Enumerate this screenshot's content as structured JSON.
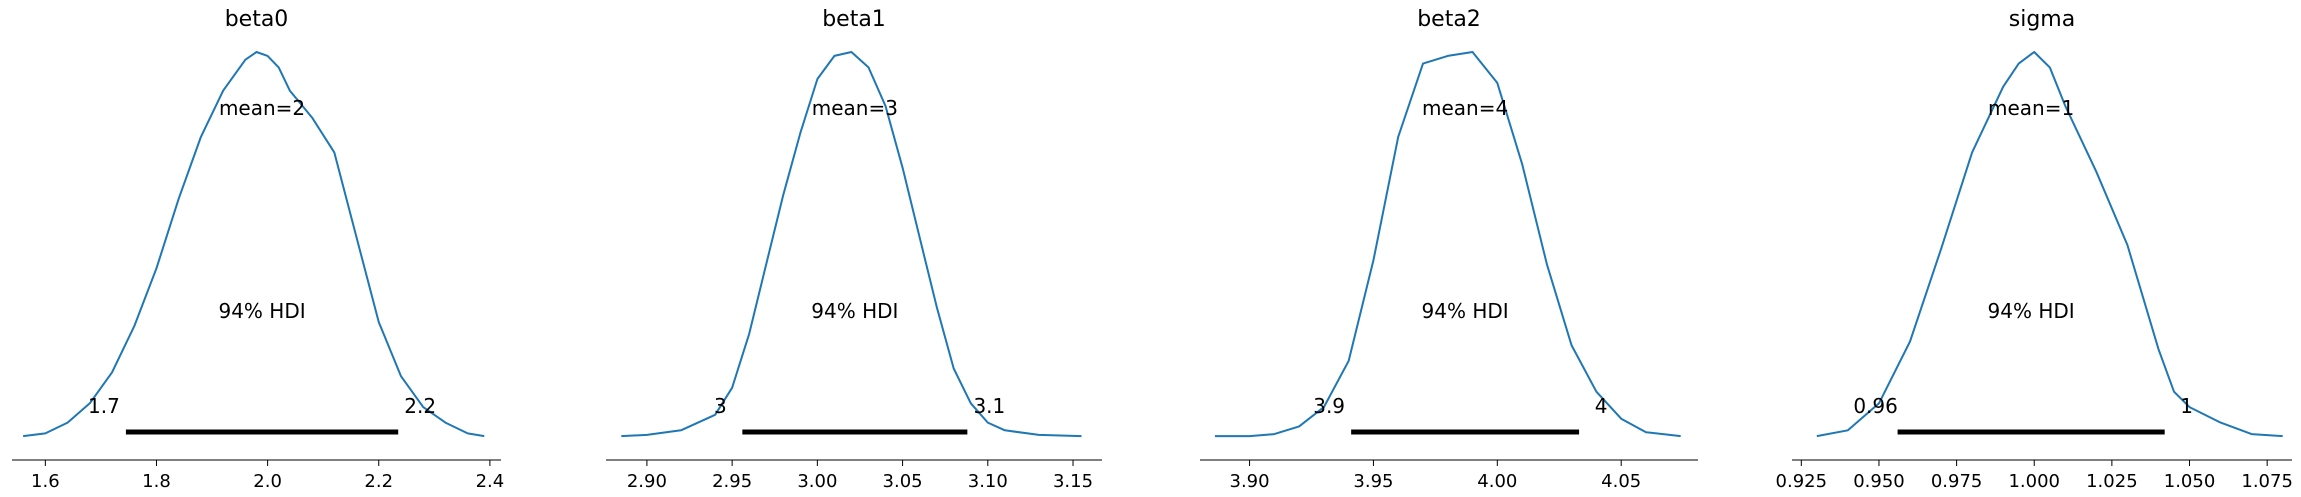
{
  "chart_data": [
    {
      "type": "density",
      "title": "beta0",
      "mean_label": "mean=2",
      "hdi_label": "94% HDI",
      "hdi": [
        1.745,
        2.235
      ],
      "hdi_low_label": "1.7",
      "hdi_high_label": "2.2",
      "xlim": [
        1.54,
        2.42
      ],
      "xticks": [
        1.6,
        1.8,
        2.0,
        2.2,
        2.4
      ],
      "xtick_labels": [
        "1.6",
        "1.8",
        "2.0",
        "2.2",
        "2.4"
      ],
      "curve_x": [
        1.56,
        1.6,
        1.64,
        1.68,
        1.72,
        1.76,
        1.8,
        1.84,
        1.88,
        1.92,
        1.96,
        1.98,
        2.0,
        2.02,
        2.04,
        2.08,
        2.12,
        2.16,
        2.2,
        2.24,
        2.28,
        2.32,
        2.36,
        2.39
      ],
      "curve_y": [
        0.005,
        0.012,
        0.04,
        0.09,
        0.17,
        0.29,
        0.44,
        0.62,
        0.78,
        0.9,
        0.98,
        1.0,
        0.99,
        0.96,
        0.9,
        0.83,
        0.74,
        0.52,
        0.3,
        0.16,
        0.08,
        0.04,
        0.012,
        0.005
      ]
    },
    {
      "type": "density",
      "title": "beta1",
      "mean_label": "mean=3",
      "hdi_label": "94% HDI",
      "hdi": [
        2.956,
        3.088
      ],
      "hdi_low_label": "3",
      "hdi_high_label": "3.1",
      "xlim": [
        2.876,
        3.167
      ],
      "xticks": [
        2.9,
        2.95,
        3.0,
        3.05,
        3.1,
        3.15
      ],
      "xtick_labels": [
        "2.90",
        "2.95",
        "3.00",
        "3.05",
        "3.10",
        "3.15"
      ],
      "curve_x": [
        2.885,
        2.9,
        2.92,
        2.94,
        2.95,
        2.96,
        2.97,
        2.98,
        2.99,
        3.0,
        3.01,
        3.02,
        3.03,
        3.04,
        3.05,
        3.06,
        3.07,
        3.08,
        3.09,
        3.1,
        3.11,
        3.13,
        3.155
      ],
      "curve_y": [
        0.005,
        0.008,
        0.02,
        0.06,
        0.13,
        0.27,
        0.45,
        0.63,
        0.79,
        0.93,
        0.99,
        1.0,
        0.96,
        0.86,
        0.7,
        0.52,
        0.34,
        0.18,
        0.09,
        0.04,
        0.02,
        0.008,
        0.005
      ]
    },
    {
      "type": "density",
      "title": "beta2",
      "mean_label": "mean=4",
      "hdi_label": "94% HDI",
      "hdi": [
        3.941,
        4.033
      ],
      "hdi_low_label": "3.9",
      "hdi_high_label": "4",
      "xlim": [
        3.88,
        4.081
      ],
      "xticks": [
        3.9,
        3.95,
        4.0,
        4.05
      ],
      "xtick_labels": [
        "3.90",
        "3.95",
        "4.00",
        "4.05"
      ],
      "curve_x": [
        3.886,
        3.9,
        3.91,
        3.92,
        3.93,
        3.94,
        3.95,
        3.96,
        3.97,
        3.98,
        3.99,
        4.0,
        4.01,
        4.02,
        4.03,
        4.04,
        4.05,
        4.06,
        4.074
      ],
      "curve_y": [
        0.005,
        0.005,
        0.01,
        0.03,
        0.08,
        0.2,
        0.46,
        0.78,
        0.97,
        0.99,
        1.0,
        0.92,
        0.71,
        0.45,
        0.24,
        0.12,
        0.05,
        0.015,
        0.005
      ]
    },
    {
      "type": "density",
      "title": "sigma",
      "mean_label": "mean=1",
      "hdi_label": "94% HDI",
      "hdi": [
        0.956,
        1.042
      ],
      "hdi_low_label": "0.96",
      "hdi_high_label": "1",
      "xlim": [
        0.922,
        1.083
      ],
      "xticks": [
        0.925,
        0.95,
        0.975,
        1.0,
        1.025,
        1.05,
        1.075
      ],
      "xtick_labels": [
        "0.925",
        "0.950",
        "0.975",
        "1.000",
        "1.025",
        "1.050",
        "1.075"
      ],
      "curve_x": [
        0.93,
        0.94,
        0.95,
        0.96,
        0.97,
        0.98,
        0.99,
        0.995,
        1.0,
        1.005,
        1.01,
        1.02,
        1.03,
        1.04,
        1.045,
        1.05,
        1.06,
        1.07,
        1.08
      ],
      "curve_y": [
        0.005,
        0.02,
        0.09,
        0.25,
        0.49,
        0.74,
        0.91,
        0.97,
        1.0,
        0.96,
        0.86,
        0.69,
        0.5,
        0.23,
        0.12,
        0.08,
        0.04,
        0.01,
        0.005
      ]
    }
  ]
}
